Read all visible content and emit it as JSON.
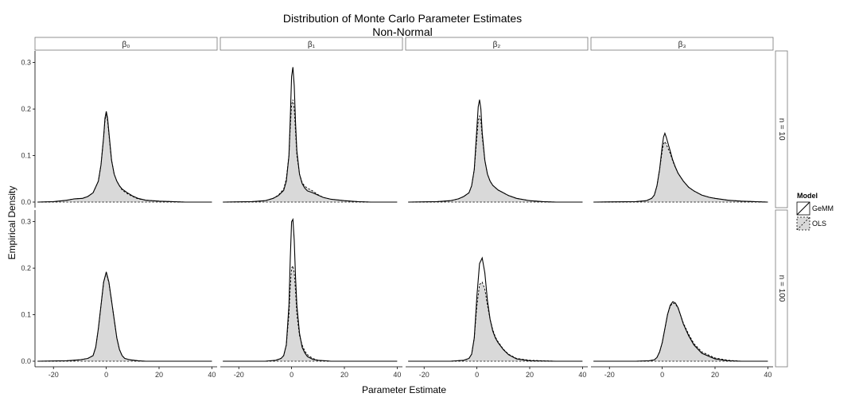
{
  "chart_data": {
    "type": "area",
    "title": "Distribution of Monte Carlo Parameter Estimates",
    "subtitle": "Non-Normal",
    "xlabel": "Parameter Estimate",
    "ylabel": "Empirical Density",
    "xlim": [
      -27,
      42
    ],
    "ylim": [
      -0.012,
      0.325
    ],
    "x_ticks": [
      -20,
      0,
      20,
      40
    ],
    "y_ticks": [
      0.0,
      0.1,
      0.2,
      0.3
    ],
    "y_tick_labels": [
      "0.0",
      "0.1",
      "0.2",
      "0.3"
    ],
    "columns": [
      "β₀",
      "β₁",
      "β₂",
      "β₃"
    ],
    "rows": [
      "n = 10",
      "n = 100"
    ],
    "legend": {
      "title": "Model",
      "position": "right",
      "entries": [
        {
          "name": "GeMM",
          "style": "solid line, no fill"
        },
        {
          "name": "OLS",
          "style": "dashed line, grey fill"
        }
      ]
    },
    "colors": {
      "fill": "#d9d9d9",
      "line": "#000000",
      "strip_border": "#777777"
    },
    "panels": [
      {
        "row": "n = 10",
        "col": "β₀",
        "GeMM": {
          "x": [
            -26,
            -20,
            -15,
            -12,
            -9,
            -7,
            -5,
            -3,
            -2,
            -1,
            -0.5,
            0,
            0.5,
            1,
            2,
            3,
            4,
            5,
            6,
            8,
            10,
            12,
            15,
            20,
            25,
            30,
            40
          ],
          "y": [
            0,
            0.001,
            0.004,
            0.007,
            0.008,
            0.012,
            0.02,
            0.045,
            0.08,
            0.14,
            0.18,
            0.195,
            0.18,
            0.15,
            0.09,
            0.06,
            0.045,
            0.035,
            0.028,
            0.02,
            0.013,
            0.008,
            0.004,
            0.002,
            0.001,
            0,
            0
          ]
        },
        "OLS": {
          "x": [
            -26,
            -20,
            -15,
            -12,
            -9,
            -7,
            -5,
            -3,
            -2,
            -1,
            -0.5,
            0,
            0.5,
            1,
            2,
            3,
            4,
            5,
            6,
            8,
            10,
            12,
            15,
            20,
            25,
            30,
            40
          ],
          "y": [
            0,
            0.001,
            0.004,
            0.007,
            0.008,
            0.012,
            0.02,
            0.045,
            0.08,
            0.14,
            0.175,
            0.19,
            0.175,
            0.145,
            0.09,
            0.06,
            0.045,
            0.035,
            0.026,
            0.018,
            0.012,
            0.007,
            0.004,
            0.002,
            0.001,
            0,
            0
          ]
        }
      },
      {
        "row": "n = 10",
        "col": "β₁",
        "GeMM": {
          "x": [
            -26,
            -15,
            -10,
            -7,
            -5,
            -3,
            -2,
            -1,
            -0.5,
            0,
            0.5,
            1,
            1.5,
            2,
            3,
            4,
            5,
            6,
            8,
            10,
            12,
            15,
            20,
            25,
            30,
            40
          ],
          "y": [
            0,
            0.001,
            0.003,
            0.008,
            0.014,
            0.025,
            0.045,
            0.1,
            0.18,
            0.27,
            0.29,
            0.25,
            0.17,
            0.11,
            0.06,
            0.04,
            0.03,
            0.024,
            0.02,
            0.015,
            0.01,
            0.006,
            0.003,
            0.001,
            0,
            0
          ]
        },
        "OLS": {
          "x": [
            -26,
            -15,
            -10,
            -7,
            -5,
            -3,
            -2,
            -1,
            -0.5,
            0,
            0.5,
            1,
            1.5,
            2,
            3,
            4,
            5,
            6,
            8,
            10,
            12,
            15,
            20,
            25,
            30,
            40
          ],
          "y": [
            0,
            0.001,
            0.003,
            0.008,
            0.015,
            0.028,
            0.05,
            0.1,
            0.16,
            0.21,
            0.22,
            0.2,
            0.15,
            0.1,
            0.06,
            0.042,
            0.034,
            0.03,
            0.024,
            0.016,
            0.01,
            0.006,
            0.003,
            0.001,
            0,
            0
          ]
        }
      },
      {
        "row": "n = 10",
        "col": "β₂",
        "GeMM": {
          "x": [
            -26,
            -15,
            -10,
            -7,
            -5,
            -3,
            -2,
            -1,
            0,
            0.5,
            1,
            1.5,
            2,
            3,
            4,
            5,
            6,
            8,
            10,
            12,
            15,
            20,
            25,
            30,
            40
          ],
          "y": [
            0,
            0.001,
            0.003,
            0.007,
            0.012,
            0.02,
            0.035,
            0.07,
            0.16,
            0.205,
            0.22,
            0.2,
            0.15,
            0.09,
            0.06,
            0.045,
            0.036,
            0.026,
            0.02,
            0.014,
            0.008,
            0.003,
            0.001,
            0,
            0
          ]
        },
        "OLS": {
          "x": [
            -26,
            -15,
            -10,
            -7,
            -5,
            -3,
            -2,
            -1,
            0,
            0.5,
            1,
            1.5,
            2,
            3,
            4,
            5,
            6,
            8,
            10,
            12,
            15,
            20,
            25,
            30,
            40
          ],
          "y": [
            0,
            0.001,
            0.003,
            0.007,
            0.012,
            0.02,
            0.035,
            0.07,
            0.14,
            0.175,
            0.185,
            0.175,
            0.14,
            0.09,
            0.06,
            0.045,
            0.036,
            0.026,
            0.02,
            0.014,
            0.008,
            0.003,
            0.001,
            0,
            0
          ]
        }
      },
      {
        "row": "n = 10",
        "col": "β₃",
        "GeMM": {
          "x": [
            -26,
            -10,
            -6,
            -4,
            -3,
            -2,
            -1,
            0,
            0.5,
            1,
            1.5,
            2,
            3,
            4,
            5,
            6,
            8,
            10,
            12,
            15,
            18,
            20,
            25,
            30,
            35,
            40
          ],
          "y": [
            0,
            0.001,
            0.003,
            0.008,
            0.015,
            0.035,
            0.07,
            0.12,
            0.14,
            0.148,
            0.14,
            0.13,
            0.11,
            0.09,
            0.075,
            0.062,
            0.045,
            0.032,
            0.024,
            0.015,
            0.01,
            0.008,
            0.004,
            0.002,
            0.001,
            0
          ]
        },
        "OLS": {
          "x": [
            -26,
            -10,
            -6,
            -4,
            -3,
            -2,
            -1,
            0,
            0.5,
            1,
            1.5,
            2,
            3,
            4,
            5,
            6,
            8,
            10,
            12,
            15,
            18,
            20,
            25,
            30,
            35,
            40
          ],
          "y": [
            0,
            0.001,
            0.003,
            0.008,
            0.015,
            0.035,
            0.07,
            0.11,
            0.125,
            0.13,
            0.125,
            0.118,
            0.105,
            0.088,
            0.074,
            0.062,
            0.045,
            0.032,
            0.024,
            0.015,
            0.01,
            0.008,
            0.004,
            0.002,
            0.001,
            0
          ]
        }
      },
      {
        "row": "n = 100",
        "col": "β₀",
        "GeMM": {
          "x": [
            -26,
            -15,
            -10,
            -7,
            -5,
            -4,
            -3,
            -2,
            -1,
            0,
            1,
            2,
            3,
            4,
            5,
            6,
            7,
            9,
            12,
            15,
            20,
            30,
            40
          ],
          "y": [
            0,
            0.001,
            0.003,
            0.006,
            0.012,
            0.03,
            0.07,
            0.12,
            0.17,
            0.192,
            0.17,
            0.13,
            0.09,
            0.05,
            0.025,
            0.012,
            0.006,
            0.003,
            0.001,
            0,
            0,
            0,
            0
          ]
        },
        "OLS": {
          "x": [
            -26,
            -15,
            -10,
            -7,
            -5,
            -4,
            -3,
            -2,
            -1,
            0,
            1,
            2,
            3,
            4,
            5,
            6,
            7,
            9,
            12,
            15,
            20,
            30,
            40
          ],
          "y": [
            0,
            0.001,
            0.003,
            0.006,
            0.012,
            0.03,
            0.07,
            0.12,
            0.17,
            0.19,
            0.168,
            0.13,
            0.09,
            0.05,
            0.025,
            0.012,
            0.006,
            0.003,
            0.001,
            0,
            0,
            0,
            0
          ]
        }
      },
      {
        "row": "n = 100",
        "col": "β₁",
        "GeMM": {
          "x": [
            -26,
            -10,
            -6,
            -4,
            -3,
            -2,
            -1,
            -0.5,
            0,
            0.5,
            1,
            1.5,
            2,
            3,
            4,
            5,
            6,
            8,
            10,
            15,
            20,
            30,
            40
          ],
          "y": [
            0,
            0,
            0.002,
            0.006,
            0.012,
            0.035,
            0.12,
            0.22,
            0.3,
            0.305,
            0.26,
            0.18,
            0.12,
            0.06,
            0.03,
            0.018,
            0.01,
            0.004,
            0.002,
            0,
            0,
            0,
            0
          ]
        },
        "OLS": {
          "x": [
            -26,
            -10,
            -6,
            -4,
            -3,
            -2,
            -1,
            -0.5,
            0,
            0.5,
            1,
            1.5,
            2,
            3,
            4,
            5,
            6,
            8,
            10,
            15,
            20,
            30,
            40
          ],
          "y": [
            0,
            0,
            0.002,
            0.006,
            0.012,
            0.035,
            0.1,
            0.16,
            0.2,
            0.205,
            0.19,
            0.15,
            0.1,
            0.055,
            0.035,
            0.022,
            0.014,
            0.006,
            0.002,
            0,
            0,
            0,
            0
          ]
        }
      },
      {
        "row": "n = 100",
        "col": "β₂",
        "GeMM": {
          "x": [
            -26,
            -10,
            -5,
            -3,
            -2,
            -1,
            0,
            1,
            2,
            3,
            4,
            5,
            6,
            7,
            8,
            10,
            12,
            15,
            20,
            30,
            40
          ],
          "y": [
            0,
            0,
            0.002,
            0.006,
            0.015,
            0.05,
            0.14,
            0.21,
            0.222,
            0.19,
            0.13,
            0.09,
            0.065,
            0.05,
            0.04,
            0.025,
            0.014,
            0.005,
            0.001,
            0,
            0
          ]
        },
        "OLS": {
          "x": [
            -26,
            -10,
            -5,
            -3,
            -2,
            -1,
            0,
            1,
            2,
            3,
            4,
            5,
            6,
            7,
            8,
            10,
            12,
            15,
            20,
            30,
            40
          ],
          "y": [
            0,
            0,
            0.002,
            0.006,
            0.015,
            0.05,
            0.12,
            0.165,
            0.17,
            0.155,
            0.12,
            0.09,
            0.068,
            0.052,
            0.042,
            0.026,
            0.015,
            0.006,
            0.002,
            0,
            0
          ]
        }
      },
      {
        "row": "n = 100",
        "col": "β₃",
        "GeMM": {
          "x": [
            -26,
            -10,
            -5,
            -3,
            -2,
            -1,
            0,
            1,
            2,
            3,
            4,
            5,
            6,
            7,
            8,
            10,
            12,
            15,
            20,
            25,
            30,
            40
          ],
          "y": [
            0,
            0,
            0.001,
            0.003,
            0.008,
            0.02,
            0.04,
            0.07,
            0.1,
            0.12,
            0.128,
            0.125,
            0.115,
            0.098,
            0.08,
            0.055,
            0.035,
            0.017,
            0.005,
            0.001,
            0,
            0
          ]
        },
        "OLS": {
          "x": [
            -26,
            -10,
            -5,
            -3,
            -2,
            -1,
            0,
            1,
            2,
            3,
            4,
            5,
            6,
            7,
            8,
            10,
            12,
            15,
            20,
            25,
            30,
            40
          ],
          "y": [
            0,
            0,
            0.001,
            0.003,
            0.008,
            0.02,
            0.04,
            0.07,
            0.1,
            0.118,
            0.125,
            0.123,
            0.114,
            0.098,
            0.082,
            0.058,
            0.038,
            0.02,
            0.007,
            0.002,
            0,
            0
          ]
        }
      }
    ]
  }
}
